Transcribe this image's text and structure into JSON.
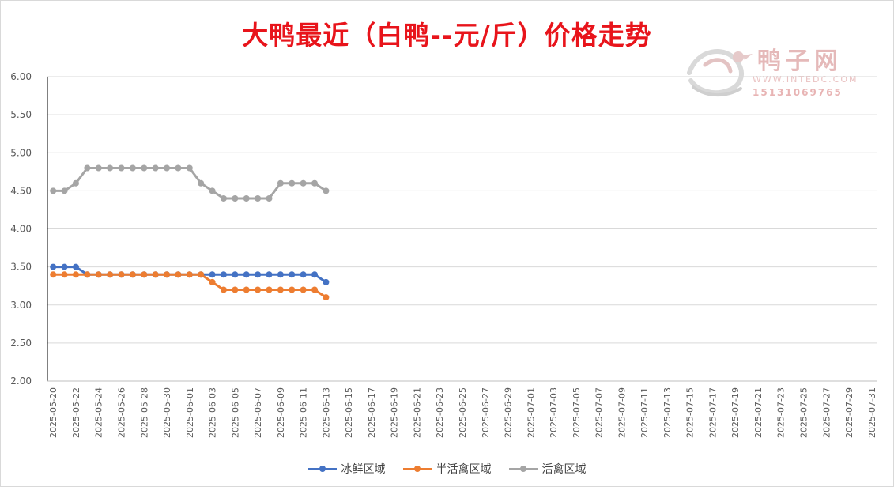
{
  "title": "大鸭最近（白鸭--元/斤）价格走势",
  "watermark": {
    "name": "鸭子网",
    "url": "WWW.INTEDC.COM",
    "phone": "15131069765",
    "logo_icon": "duck-logo-icon"
  },
  "chart_data": {
    "type": "line",
    "title": "大鸭最近（白鸭--元/斤）价格走势",
    "xlabel": "",
    "ylabel": "",
    "ylim": [
      2.0,
      6.0
    ],
    "y_ticks": [
      "2.00",
      "2.50",
      "3.00",
      "3.50",
      "4.00",
      "4.50",
      "5.00",
      "5.50",
      "6.00"
    ],
    "grid": true,
    "legend_position": "bottom",
    "x_range": [
      "2025-05-20",
      "2025-07-31"
    ],
    "x_tick_labels": [
      "2025-05-20",
      "2025-05-22",
      "2025-05-24",
      "2025-05-26",
      "2025-05-28",
      "2025-05-30",
      "2025-06-01",
      "2025-06-03",
      "2025-06-05",
      "2025-06-07",
      "2025-06-09",
      "2025-06-11",
      "2025-06-13",
      "2025-06-15",
      "2025-06-17",
      "2025-06-19",
      "2025-06-21",
      "2025-06-23",
      "2025-06-25",
      "2025-06-27",
      "2025-06-29",
      "2025-07-01",
      "2025-07-03",
      "2025-07-05",
      "2025-07-07",
      "2025-07-09",
      "2025-07-11",
      "2025-07-13",
      "2025-07-15",
      "2025-07-17",
      "2025-07-19",
      "2025-07-21",
      "2025-07-23",
      "2025-07-25",
      "2025-07-27",
      "2025-07-29",
      "2025-07-31"
    ],
    "x": [
      "2025-05-20",
      "2025-05-21",
      "2025-05-22",
      "2025-05-23",
      "2025-05-24",
      "2025-05-25",
      "2025-05-26",
      "2025-05-27",
      "2025-05-28",
      "2025-05-29",
      "2025-05-30",
      "2025-05-31",
      "2025-06-01",
      "2025-06-02",
      "2025-06-03",
      "2025-06-04",
      "2025-06-05",
      "2025-06-06",
      "2025-06-07",
      "2025-06-08",
      "2025-06-09",
      "2025-06-10",
      "2025-06-11",
      "2025-06-12",
      "2025-06-13"
    ],
    "series": [
      {
        "name": "冰鲜区域",
        "color": "#4472c4",
        "values": [
          3.5,
          3.5,
          3.5,
          3.4,
          3.4,
          3.4,
          3.4,
          3.4,
          3.4,
          3.4,
          3.4,
          3.4,
          3.4,
          3.4,
          3.4,
          3.4,
          3.4,
          3.4,
          3.4,
          3.4,
          3.4,
          3.4,
          3.4,
          3.4,
          3.3
        ]
      },
      {
        "name": "半活禽区域",
        "color": "#ed7d31",
        "values": [
          3.4,
          3.4,
          3.4,
          3.4,
          3.4,
          3.4,
          3.4,
          3.4,
          3.4,
          3.4,
          3.4,
          3.4,
          3.4,
          3.4,
          3.3,
          3.2,
          3.2,
          3.2,
          3.2,
          3.2,
          3.2,
          3.2,
          3.2,
          3.2,
          3.1
        ]
      },
      {
        "name": "活禽区域",
        "color": "#a5a5a5",
        "values": [
          4.5,
          4.5,
          4.6,
          4.8,
          4.8,
          4.8,
          4.8,
          4.8,
          4.8,
          4.8,
          4.8,
          4.8,
          4.8,
          4.6,
          4.5,
          4.4,
          4.4,
          4.4,
          4.4,
          4.4,
          4.6,
          4.6,
          4.6,
          4.6,
          4.5
        ]
      }
    ]
  }
}
